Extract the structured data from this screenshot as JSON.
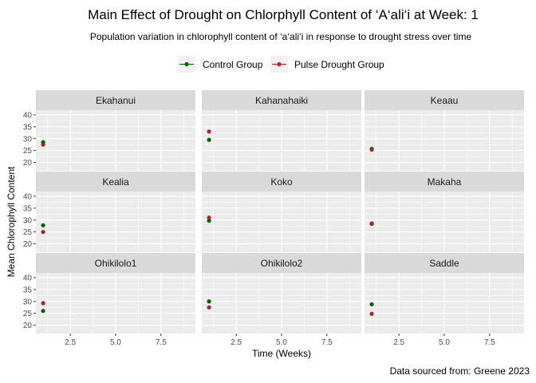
{
  "title": "Main Effect of Drought on Chlorphyll Content of ‘A‘ali‘i at Week: 1",
  "subtitle": "Population variation in chlorophyll content of ‘a‘ali‘i in response to drought stress over time",
  "caption": "Data sourced from: Greene 2023",
  "chart_data": {
    "type": "scatter",
    "facet_layout": {
      "rows": 3,
      "cols": 3
    },
    "xlabel": "Time (Weeks)",
    "ylabel": "Mean Chlorophyll Content",
    "xlim": [
      0.6,
      9.4
    ],
    "ylim": [
      16.5,
      42
    ],
    "x_ticks": [
      2.5,
      5.0,
      7.5
    ],
    "x_tick_labels": [
      "2.5",
      "5.0",
      "7.5"
    ],
    "y_ticks": [
      20,
      25,
      30,
      35,
      40
    ],
    "y_tick_labels": [
      "20",
      "25",
      "30",
      "35",
      "40"
    ],
    "grid": true,
    "legend_position": "top",
    "series": [
      {
        "name": "Control Group",
        "color": "#006400"
      },
      {
        "name": "Pulse Drought Group",
        "color": "#b22222"
      }
    ],
    "facets": [
      {
        "name": "Ekahanui",
        "points": [
          {
            "series": 0,
            "x": 1,
            "y": 28.5
          },
          {
            "series": 1,
            "x": 1,
            "y": 27.5
          }
        ]
      },
      {
        "name": "Kahanahaiki",
        "points": [
          {
            "series": 0,
            "x": 1,
            "y": 29.5
          },
          {
            "series": 1,
            "x": 1,
            "y": 33.0
          }
        ]
      },
      {
        "name": "Keaau",
        "points": [
          {
            "series": 0,
            "x": 1,
            "y": 25.7
          },
          {
            "series": 1,
            "x": 1,
            "y": 25.4
          }
        ]
      },
      {
        "name": "Kealia",
        "points": [
          {
            "series": 0,
            "x": 1,
            "y": 27.8
          },
          {
            "series": 1,
            "x": 1,
            "y": 25.0
          }
        ]
      },
      {
        "name": "Koko",
        "points": [
          {
            "series": 0,
            "x": 1,
            "y": 29.7
          },
          {
            "series": 1,
            "x": 1,
            "y": 31.0
          }
        ]
      },
      {
        "name": "Makaha",
        "points": [
          {
            "series": 0,
            "x": 1,
            "y": 28.4
          },
          {
            "series": 1,
            "x": 1,
            "y": 28.6
          }
        ]
      },
      {
        "name": "Ohikilolo1",
        "points": [
          {
            "series": 0,
            "x": 1,
            "y": 26.0
          },
          {
            "series": 1,
            "x": 1,
            "y": 29.3
          }
        ]
      },
      {
        "name": "Ohikilolo2",
        "points": [
          {
            "series": 0,
            "x": 1,
            "y": 30.0
          },
          {
            "series": 1,
            "x": 1,
            "y": 27.5
          }
        ]
      },
      {
        "name": "Saddle",
        "points": [
          {
            "series": 0,
            "x": 1,
            "y": 28.8
          },
          {
            "series": 1,
            "x": 1,
            "y": 24.8
          }
        ]
      }
    ]
  }
}
